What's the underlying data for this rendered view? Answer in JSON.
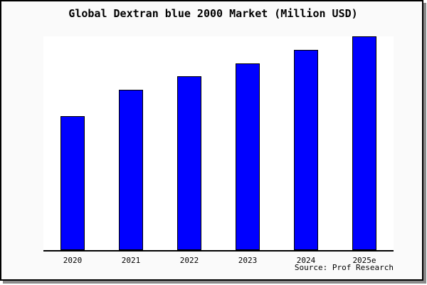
{
  "chart_data": {
    "type": "bar",
    "title": "Global Dextran blue 2000 Market (Million USD)",
    "categories": [
      "2020",
      "2021",
      "2022",
      "2023",
      "2024",
      "2025e"
    ],
    "values": [
      62.8,
      75.1,
      81.4,
      87.4,
      93.7,
      100
    ],
    "values_note": "y-axis has no tick labels or gridlines; values are relative bar heights expressed as % of the tallest (2025e) bar",
    "source": "Source: Prof Research",
    "xlabel": "",
    "ylabel": "",
    "grid": false,
    "legend": false,
    "axis_range_pct": [
      0,
      100
    ],
    "colors": {
      "bar_fill": "#0000ff",
      "bar_border": "#000000",
      "plot_bg": "#ffffff",
      "card_bg": "#fafafa",
      "frame_border": "#000000",
      "shadow": "#8a8a8a",
      "axis_line": "#000000",
      "text": "#000000"
    }
  }
}
